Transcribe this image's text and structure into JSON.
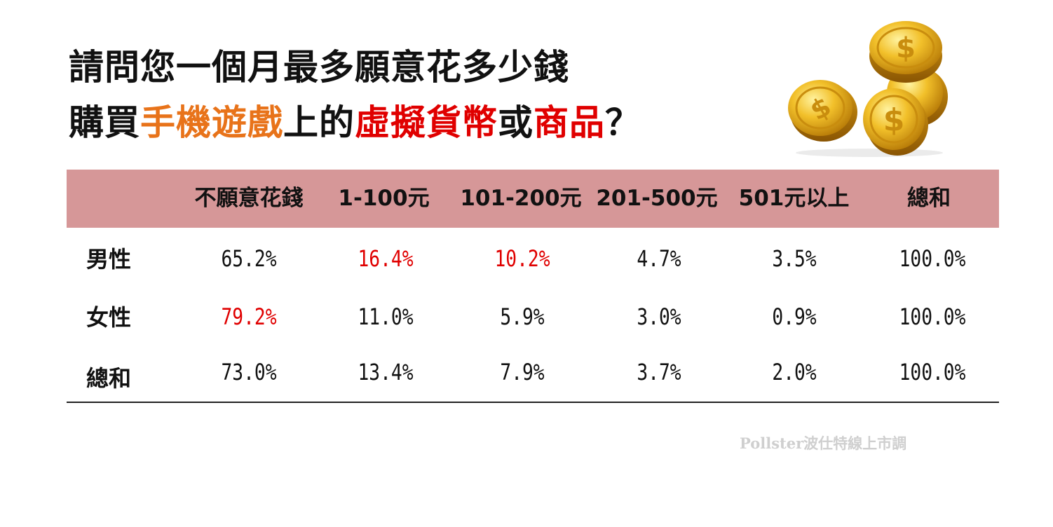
{
  "title": {
    "line1": "請問您一個月最多願意花多少錢",
    "line2": {
      "p1": "購買",
      "p2": "手機遊戲",
      "p3": "上的",
      "p4": "虛擬貨幣",
      "p5": "或",
      "p6": "商品",
      "p7": "？"
    }
  },
  "colors": {
    "orange": "#e8731a",
    "red": "#e00000",
    "header_band": "#d69798",
    "source": "#cfcfcf"
  },
  "chart_data": {
    "type": "table",
    "columns": [
      "不願意花錢",
      "1-100元",
      "101-200元",
      "201-500元",
      "501元以上",
      "總和"
    ],
    "rows": [
      {
        "label": "男性",
        "values": [
          "65.2%",
          "16.4%",
          "10.2%",
          "4.7%",
          "3.5%",
          "100.0%"
        ],
        "highlight": [
          false,
          true,
          true,
          false,
          false,
          false
        ]
      },
      {
        "label": "女性",
        "values": [
          "79.2%",
          "11.0%",
          "5.9%",
          "3.0%",
          "0.9%",
          "100.0%"
        ],
        "highlight": [
          true,
          false,
          false,
          false,
          false,
          false
        ]
      },
      {
        "label": "總和",
        "values": [
          "73.0%",
          "13.4%",
          "7.9%",
          "3.7%",
          "2.0%",
          "100.0%"
        ],
        "highlight": [
          false,
          false,
          false,
          false,
          false,
          false
        ]
      }
    ]
  },
  "source": "Pollster波仕特線上市調",
  "decoration": {
    "icon": "gold-dollar-coins-icon"
  }
}
